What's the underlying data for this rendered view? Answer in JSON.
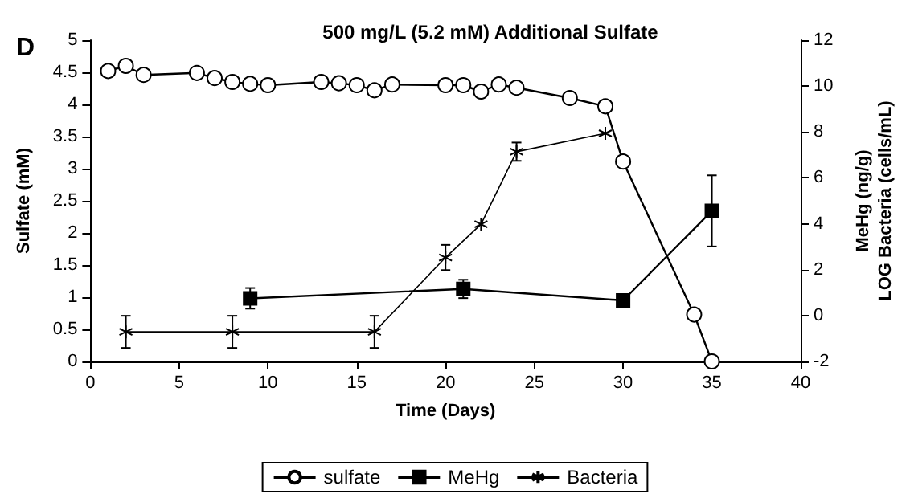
{
  "chart_data": {
    "type": "line",
    "title": "500 mg/L (5.2 mM) Additional Sulfate",
    "xlabel": "Time (Days)",
    "ylabel": "Sulfate (mM)",
    "y2label": "MeHg (ng/g)\nLOG Bacteria (cells/mL)",
    "annotations": [
      "D"
    ],
    "xlim": [
      0,
      40
    ],
    "xticks": [
      0,
      5,
      10,
      15,
      20,
      25,
      30,
      35,
      40
    ],
    "ylim": [
      0,
      5
    ],
    "yticks": [
      0,
      0.5,
      1,
      1.5,
      2,
      2.5,
      3,
      3.5,
      4,
      4.5,
      5
    ],
    "y2lim": [
      -2,
      12
    ],
    "y2ticks": [
      -2,
      0,
      2,
      4,
      6,
      8,
      10,
      12
    ],
    "grid": false,
    "legend": "bottom",
    "series": [
      {
        "name": "sulfate",
        "color": "#000000",
        "marker": "circle",
        "x": [
          1,
          2,
          3,
          6,
          7,
          8,
          9,
          10,
          13,
          14,
          15,
          16,
          17,
          20,
          21,
          22,
          23,
          24,
          27,
          29,
          30,
          34,
          35
        ],
        "values": [
          4.52,
          4.6,
          4.46,
          4.49,
          4.41,
          4.35,
          4.32,
          4.3,
          4.35,
          4.33,
          4.3,
          4.22,
          4.31,
          4.3,
          4.3,
          4.2,
          4.31,
          4.26,
          4.1,
          3.97,
          3.11,
          0.73,
          0
        ]
      },
      {
        "name": "MeHg",
        "color": "#000000",
        "marker": "square",
        "axis": "y2",
        "x": [
          9,
          21,
          30,
          35
        ],
        "values": [
          0.75,
          1.16,
          0.66,
          4.56
        ],
        "errors": [
          0.45,
          0.4,
          null,
          1.55
        ]
      },
      {
        "name": "Bacteria",
        "color": "#000000",
        "marker": "cross",
        "axis": "y2",
        "x": [
          2,
          8,
          16,
          20,
          22,
          24,
          29
        ],
        "values": [
          -0.71,
          -0.71,
          -0.71,
          2.53,
          3.98,
          7.14,
          7.94
        ],
        "errors": [
          0.7,
          0.7,
          0.7,
          0.55,
          null,
          0.4,
          null
        ]
      }
    ]
  }
}
